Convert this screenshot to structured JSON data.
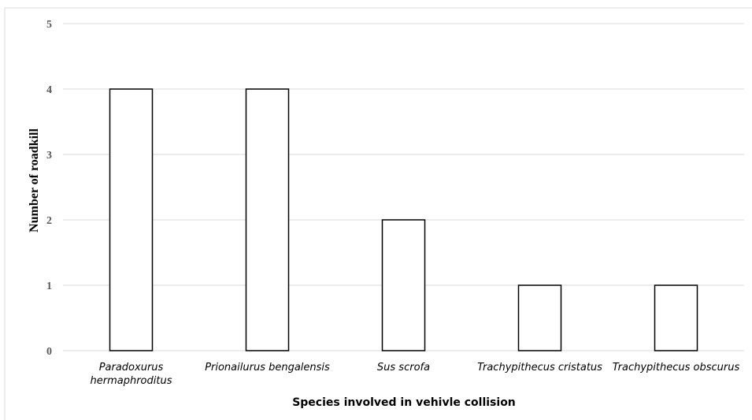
{
  "chart_data": {
    "type": "bar",
    "categories": [
      [
        "Paradoxurus",
        "hermaphroditus"
      ],
      [
        "Prionailurus bengalensis"
      ],
      [
        "Sus scrofa"
      ],
      [
        "Trachypithecus cristatus"
      ],
      [
        "Trachypithecus obscurus"
      ]
    ],
    "values": [
      4,
      4,
      2,
      1,
      1
    ],
    "xlabel": "Species involved in vehivle collision",
    "ylabel": "Number of roadkill",
    "ylim": [
      0,
      5
    ],
    "yticks": [
      "0",
      "1",
      "2",
      "3",
      "4",
      "5"
    ],
    "grid": true,
    "legend": "none",
    "colors": {
      "bar_fill": "#ffffff",
      "bar_stroke": "#000000",
      "grid": "#d9d9d9",
      "tick_text": "#595959"
    }
  }
}
